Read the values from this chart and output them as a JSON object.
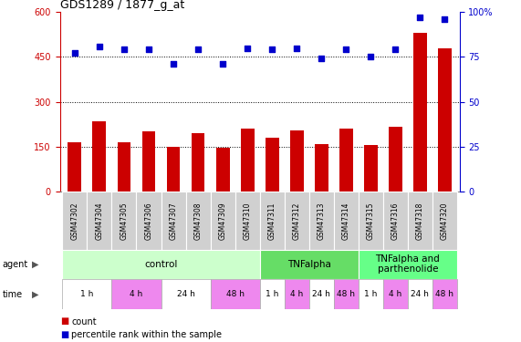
{
  "title": "GDS1289 / 1877_g_at",
  "samples": [
    "GSM47302",
    "GSM47304",
    "GSM47305",
    "GSM47306",
    "GSM47307",
    "GSM47308",
    "GSM47309",
    "GSM47310",
    "GSM47311",
    "GSM47312",
    "GSM47313",
    "GSM47314",
    "GSM47315",
    "GSM47316",
    "GSM47318",
    "GSM47320"
  ],
  "counts": [
    165,
    235,
    165,
    200,
    150,
    195,
    145,
    210,
    180,
    205,
    160,
    210,
    155,
    215,
    530,
    480
  ],
  "percentile": [
    77,
    81,
    79,
    79,
    71,
    79,
    71,
    80,
    79,
    80,
    74,
    79,
    75,
    79,
    97,
    96
  ],
  "bar_color": "#cc0000",
  "dot_color": "#0000cc",
  "ylim_left": [
    0,
    600
  ],
  "ylim_right": [
    0,
    100
  ],
  "yticks_left": [
    0,
    150,
    300,
    450,
    600
  ],
  "yticks_right": [
    0,
    25,
    50,
    75,
    100
  ],
  "ytick_labels_right": [
    "0",
    "25",
    "50",
    "75",
    "100%"
  ],
  "grid_values": [
    150,
    300,
    450
  ],
  "agent_groups": [
    {
      "label": "control",
      "start": 0,
      "end": 8,
      "color": "#ccffcc"
    },
    {
      "label": "TNFalpha",
      "start": 8,
      "end": 12,
      "color": "#66dd66"
    },
    {
      "label": "TNFalpha and\nparthenolide",
      "start": 12,
      "end": 16,
      "color": "#66ff88"
    }
  ],
  "time_groups": [
    {
      "label": "1 h",
      "start": 0,
      "end": 2,
      "color": "#ffffff"
    },
    {
      "label": "4 h",
      "start": 2,
      "end": 4,
      "color": "#ee88ee"
    },
    {
      "label": "24 h",
      "start": 4,
      "end": 6,
      "color": "#ffffff"
    },
    {
      "label": "48 h",
      "start": 6,
      "end": 8,
      "color": "#ee88ee"
    },
    {
      "label": "1 h",
      "start": 8,
      "end": 9,
      "color": "#ffffff"
    },
    {
      "label": "4 h",
      "start": 9,
      "end": 10,
      "color": "#ee88ee"
    },
    {
      "label": "24 h",
      "start": 10,
      "end": 11,
      "color": "#ffffff"
    },
    {
      "label": "48 h",
      "start": 11,
      "end": 12,
      "color": "#ee88ee"
    },
    {
      "label": "1 h",
      "start": 12,
      "end": 13,
      "color": "#ffffff"
    },
    {
      "label": "4 h",
      "start": 13,
      "end": 14,
      "color": "#ee88ee"
    },
    {
      "label": "24 h",
      "start": 14,
      "end": 15,
      "color": "#ffffff"
    },
    {
      "label": "48 h",
      "start": 15,
      "end": 16,
      "color": "#ee88ee"
    }
  ],
  "legend_count_color": "#cc0000",
  "legend_dot_color": "#0000cc",
  "left_axis_color": "#cc0000",
  "right_axis_color": "#0000cc",
  "sample_bg_color": "#d0d0d0",
  "sample_border_color": "#aaaaaa"
}
